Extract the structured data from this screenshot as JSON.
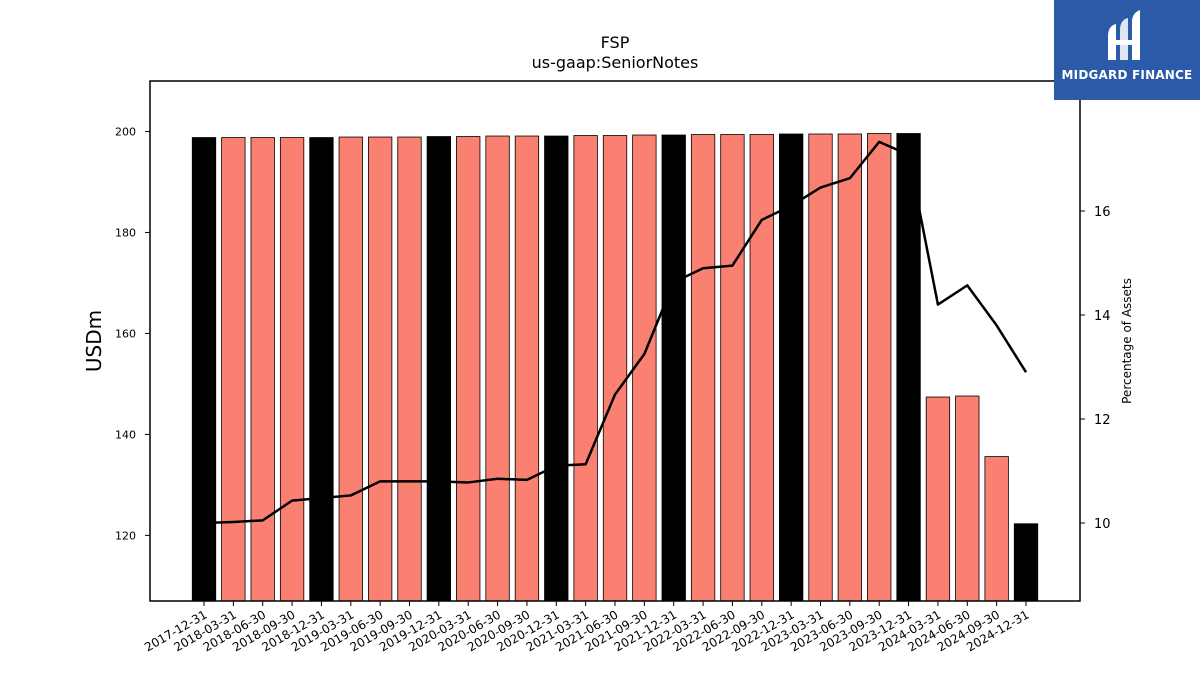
{
  "chart_data": {
    "type": "bar",
    "title": "FSP",
    "subtitle": "us-gaap:SeniorNotes",
    "ylabel": "USDm",
    "ylabel_right": "Percentage of Assets",
    "ylim": [
      107,
      210
    ],
    "ylim_right": [
      8.5,
      18.5
    ],
    "yticks": [
      120,
      140,
      160,
      180,
      200
    ],
    "yticks_right": [
      10,
      12,
      14,
      16
    ],
    "grid": false,
    "colors": {
      "annual": "#000000",
      "quarterly": "#fa8072",
      "line": "#000000"
    },
    "categories": [
      "2017-12-31",
      "2018-03-31",
      "2018-06-30",
      "2018-09-30",
      "2018-12-31",
      "2019-03-31",
      "2019-06-30",
      "2019-09-30",
      "2019-12-31",
      "2020-03-31",
      "2020-06-30",
      "2020-09-30",
      "2020-12-31",
      "2021-03-31",
      "2021-06-30",
      "2021-09-30",
      "2021-12-31",
      "2022-03-31",
      "2022-06-30",
      "2022-09-30",
      "2022-12-31",
      "2023-03-31",
      "2023-06-30",
      "2023-09-30",
      "2023-12-31",
      "2024-03-31",
      "2024-06-30",
      "2024-09-30",
      "2024-12-31"
    ],
    "series": [
      {
        "values": [
          198.8,
          198.8,
          198.8,
          198.8,
          198.8,
          198.9,
          198.9,
          198.9,
          199.0,
          199.0,
          199.1,
          199.1,
          199.1,
          199.2,
          199.2,
          199.3,
          199.3,
          199.4,
          199.4,
          199.4,
          199.5,
          199.5,
          199.5,
          199.6,
          199.6,
          147.4,
          147.6,
          135.6,
          122.3
        ],
        "annual": [
          true,
          false,
          false,
          false,
          true,
          false,
          false,
          false,
          true,
          false,
          false,
          false,
          true,
          false,
          false,
          false,
          true,
          false,
          false,
          false,
          true,
          false,
          false,
          false,
          true,
          false,
          false,
          false,
          true
        ]
      },
      {
        "axis": "right",
        "type": "line",
        "values": [
          10.0,
          10.02,
          10.05,
          10.43,
          10.48,
          10.53,
          10.8,
          10.8,
          10.8,
          10.78,
          10.85,
          10.83,
          11.1,
          11.13,
          12.47,
          13.25,
          14.63,
          14.9,
          14.95,
          15.83,
          16.1,
          16.45,
          16.63,
          17.33,
          17.08,
          14.2,
          14.57,
          13.8,
          12.9
        ]
      }
    ]
  },
  "logo": {
    "text": "MIDGARD FINANCE"
  }
}
